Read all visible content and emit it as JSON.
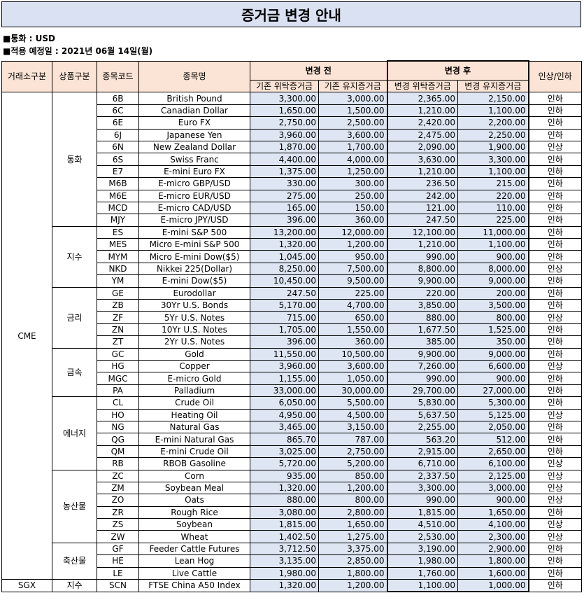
{
  "title": "증거금 변경 안내",
  "currency_line": "■통화 : USD",
  "date_line": "■적용 예정일 : 2021년 06월 14일(월)",
  "headers": {
    "exchange": "거래소구분",
    "category": "상품구분",
    "code": "종목코드",
    "name": "종목명",
    "before": "변경 전",
    "after": "변경 후",
    "change": "인상/인하",
    "before_initial": "기존 위탁증거금",
    "before_maint": "기존 유지증거금",
    "after_initial": "변경 위탁증거금",
    "after_maint": "변경 유지증거금"
  },
  "groups": [
    {
      "exchange": "CME",
      "category": "통화",
      "rows": [
        [
          "6B",
          "British Pound",
          "3,300.00",
          "3,000.00",
          "2,365.00",
          "2,150.00",
          "인하"
        ],
        [
          "6C",
          "Canadian Dollar",
          "1,650.00",
          "1,500.00",
          "1,210.00",
          "1,100.00",
          "인하"
        ],
        [
          "6E",
          "Euro FX",
          "2,750.00",
          "2,500.00",
          "2,420.00",
          "2,200.00",
          "인하"
        ],
        [
          "6J",
          "Japanese Yen",
          "3,960.00",
          "3,600.00",
          "2,475.00",
          "2,250.00",
          "인하"
        ],
        [
          "6N",
          "New Zealand Dollar",
          "1,870.00",
          "1,700.00",
          "2,090.00",
          "1,900.00",
          "인상"
        ],
        [
          "6S",
          "Swiss Franc",
          "4,400.00",
          "4,000.00",
          "3,630.00",
          "3,300.00",
          "인하"
        ],
        [
          "E7",
          "E-mini Euro FX",
          "1,375.00",
          "1,250.00",
          "1,210.00",
          "1,100.00",
          "인하"
        ],
        [
          "M6B",
          "E-micro GBP/USD",
          "330.00",
          "300.00",
          "236.50",
          "215.00",
          "인하"
        ],
        [
          "M6E",
          "E-micro EUR/USD",
          "275.00",
          "250.00",
          "242.00",
          "220.00",
          "인하"
        ],
        [
          "MCD",
          "E-micro CAD/USD",
          "165.00",
          "150.00",
          "121.00",
          "110.00",
          "인하"
        ],
        [
          "MJY",
          "E-micro JPY/USD",
          "396.00",
          "360.00",
          "247.50",
          "225.00",
          "인하"
        ]
      ]
    },
    {
      "exchange": "CME",
      "category": "지수",
      "rows": [
        [
          "ES",
          "E-mini S&P 500",
          "13,200.00",
          "12,000.00",
          "12,100.00",
          "11,000.00",
          "인하"
        ],
        [
          "MES",
          "Micro E-mini S&P 500",
          "1,320.00",
          "1,200.00",
          "1,210.00",
          "1,100.00",
          "인하"
        ],
        [
          "MYM",
          "Micro E-mini Dow($5)",
          "1,045.00",
          "950.00",
          "990.00",
          "900.00",
          "인하"
        ],
        [
          "NKD",
          "Nikkei 225(Dollar)",
          "8,250.00",
          "7,500.00",
          "8,800.00",
          "8,000.00",
          "인상"
        ],
        [
          "YM",
          "E-mini Dow($5)",
          "10,450.00",
          "9,500.00",
          "9,900.00",
          "9,000.00",
          "인하"
        ]
      ]
    },
    {
      "exchange": "CME",
      "category": "금리",
      "rows": [
        [
          "GE",
          "Eurodollar",
          "247.50",
          "225.00",
          "220.00",
          "200.00",
          "인하"
        ],
        [
          "ZB",
          "30Yr U.S. Bonds",
          "5,170.00",
          "4,700.00",
          "3,850.00",
          "3,500.00",
          "인하"
        ],
        [
          "ZF",
          "5Yr U.S. Notes",
          "715.00",
          "650.00",
          "880.00",
          "800.00",
          "인상"
        ],
        [
          "ZN",
          "10Yr U.S. Notes",
          "1,705.00",
          "1,550.00",
          "1,677.50",
          "1,525.00",
          "인하"
        ],
        [
          "ZT",
          "2Yr U.S. Notes",
          "396.00",
          "360.00",
          "385.00",
          "350.00",
          "인하"
        ]
      ]
    },
    {
      "exchange": "CME",
      "category": "금속",
      "rows": [
        [
          "GC",
          "Gold",
          "11,550.00",
          "10,500.00",
          "9,900.00",
          "9,000.00",
          "인하"
        ],
        [
          "HG",
          "Copper",
          "3,960.00",
          "3,600.00",
          "7,260.00",
          "6,600.00",
          "인상"
        ],
        [
          "MGC",
          "E-micro Gold",
          "1,155.00",
          "1,050.00",
          "990.00",
          "900.00",
          "인하"
        ],
        [
          "PA",
          "Palladium",
          "33,000.00",
          "30,000.00",
          "29,700.00",
          "27,000.00",
          "인하"
        ]
      ]
    },
    {
      "exchange": "CME",
      "category": "에너지",
      "rows": [
        [
          "CL",
          "Crude Oil",
          "6,050.00",
          "5,500.00",
          "5,830.00",
          "5,300.00",
          "인하"
        ],
        [
          "HO",
          "Heating Oil",
          "4,950.00",
          "4,500.00",
          "5,637.50",
          "5,125.00",
          "인상"
        ],
        [
          "NG",
          "Natural Gas",
          "3,465.00",
          "3,150.00",
          "2,255.00",
          "2,050.00",
          "인하"
        ],
        [
          "QG",
          "E-mini Natural Gas",
          "865.70",
          "787.00",
          "563.20",
          "512.00",
          "인하"
        ],
        [
          "QM",
          "E-mini Crude Oil",
          "3,025.00",
          "2,750.00",
          "2,915.00",
          "2,650.00",
          "인하"
        ],
        [
          "RB",
          "RBOB Gasoline",
          "5,720.00",
          "5,200.00",
          "6,710.00",
          "6,100.00",
          "인상"
        ]
      ]
    },
    {
      "exchange": "CME",
      "category": "농산물",
      "rows": [
        [
          "ZC",
          "Corn",
          "935.00",
          "850.00",
          "2,337.50",
          "2,125.00",
          "인상"
        ],
        [
          "ZM",
          "Soybean Meal",
          "1,320.00",
          "1,200.00",
          "3,300.00",
          "3,000.00",
          "인상"
        ],
        [
          "ZO",
          "Oats",
          "880.00",
          "800.00",
          "990.00",
          "900.00",
          "인상"
        ],
        [
          "ZR",
          "Rough Rice",
          "3,080.00",
          "2,800.00",
          "1,815.00",
          "1,650.00",
          "인하"
        ],
        [
          "ZS",
          "Soybean",
          "1,815.00",
          "1,650.00",
          "4,510.00",
          "4,100.00",
          "인상"
        ],
        [
          "ZW",
          "Wheat",
          "1,402.50",
          "1,275.00",
          "2,530.00",
          "2,300.00",
          "인상"
        ]
      ]
    },
    {
      "exchange": "CME",
      "category": "축산물",
      "rows": [
        [
          "GF",
          "Feeder Cattle Futures",
          "3,712.50",
          "3,375.00",
          "3,190.00",
          "2,900.00",
          "인하"
        ],
        [
          "HE",
          "Lean Hog",
          "3,135.00",
          "2,850.00",
          "1,980.00",
          "1,800.00",
          "인하"
        ],
        [
          "LE",
          "Live Cattle",
          "1,980.00",
          "1,800.00",
          "1,760.00",
          "1,600.00",
          "인하"
        ]
      ]
    },
    {
      "exchange": "SGX",
      "category": "지수",
      "rows": [
        [
          "SCN",
          "FTSE China A50 Index",
          "1,320.00",
          "1,200.00",
          "1,100.00",
          "1,000.00",
          "인하"
        ]
      ]
    }
  ]
}
